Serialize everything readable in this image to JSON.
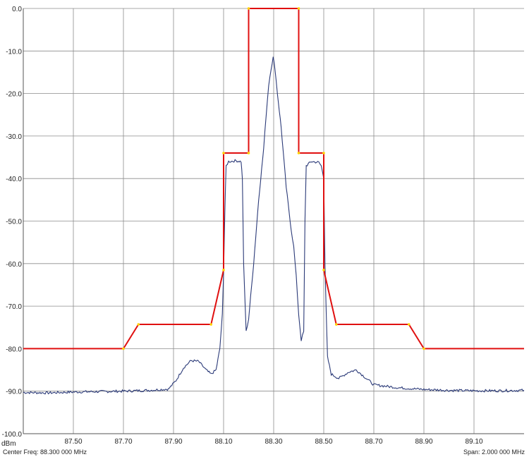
{
  "chart_data": {
    "type": "line",
    "title": "",
    "xlabel": "",
    "ylabel": "dBm",
    "xlim": [
      87.3,
      89.3
    ],
    "ylim": [
      -100,
      0
    ],
    "grid": true,
    "x_ticks": [
      "87.50",
      "87.70",
      "87.90",
      "88.10",
      "88.30",
      "88.50",
      "88.70",
      "88.90",
      "89.10"
    ],
    "y_ticks": [
      "0.0",
      "-10.0",
      "-20.0",
      "-30.0",
      "-40.0",
      "-50.0",
      "-60.0",
      "-70.0",
      "-80.0",
      "-90.0",
      "-100.0"
    ],
    "center_freq_label": "Center Freq: 88.300 000 MHz",
    "span_label": "Span: 2.000 000 MHz",
    "mask": {
      "color": "#e01010",
      "vertex_color": "#ffd400",
      "points": [
        [
          87.3,
          -80
        ],
        [
          87.7,
          -80
        ],
        [
          87.76,
          -74.3
        ],
        [
          88.05,
          -74.3
        ],
        [
          88.1,
          -61.5
        ],
        [
          88.1,
          -34
        ],
        [
          88.2,
          -34
        ],
        [
          88.2,
          0
        ],
        [
          88.4,
          0
        ],
        [
          88.4,
          -34
        ],
        [
          88.5,
          -34
        ],
        [
          88.5,
          -61.5
        ],
        [
          88.55,
          -74.3
        ],
        [
          88.84,
          -74.3
        ],
        [
          88.9,
          -80
        ],
        [
          89.3,
          -80
        ]
      ]
    },
    "series": [
      {
        "color": "#2b3a78",
        "points": [
          [
            87.3,
            -90.3
          ],
          [
            87.4,
            -90.4
          ],
          [
            87.5,
            -90.2
          ],
          [
            87.6,
            -90.1
          ],
          [
            87.7,
            -90.0
          ],
          [
            87.8,
            -89.8
          ],
          [
            87.88,
            -89.5
          ],
          [
            87.91,
            -87.5
          ],
          [
            87.94,
            -84.5
          ],
          [
            87.97,
            -82.8
          ],
          [
            88.0,
            -83.0
          ],
          [
            88.03,
            -85.0
          ],
          [
            88.05,
            -86.0
          ],
          [
            88.07,
            -85.0
          ],
          [
            88.085,
            -80.0
          ],
          [
            88.095,
            -72.0
          ],
          [
            88.1,
            -62.0
          ],
          [
            88.105,
            -48.0
          ],
          [
            88.11,
            -37.0
          ],
          [
            88.12,
            -36.0
          ],
          [
            88.15,
            -35.8
          ],
          [
            88.17,
            -36.0
          ],
          [
            88.175,
            -40.0
          ],
          [
            88.18,
            -60.0
          ],
          [
            88.19,
            -76.0
          ],
          [
            88.2,
            -73.0
          ],
          [
            88.22,
            -60.0
          ],
          [
            88.24,
            -45.0
          ],
          [
            88.26,
            -33.0
          ],
          [
            88.27,
            -25.0
          ],
          [
            88.28,
            -18.0
          ],
          [
            88.29,
            -14.0
          ],
          [
            88.298,
            -11.5
          ],
          [
            88.305,
            -14.0
          ],
          [
            88.315,
            -20.0
          ],
          [
            88.33,
            -28.0
          ],
          [
            88.35,
            -42.0
          ],
          [
            88.37,
            -52.0
          ],
          [
            88.38,
            -56.0
          ],
          [
            88.39,
            -63.0
          ],
          [
            88.4,
            -72.0
          ],
          [
            88.41,
            -78.0
          ],
          [
            88.42,
            -76.0
          ],
          [
            88.425,
            -50.0
          ],
          [
            88.43,
            -37.0
          ],
          [
            88.45,
            -36.0
          ],
          [
            88.48,
            -36.2
          ],
          [
            88.49,
            -37.0
          ],
          [
            88.5,
            -40.0
          ],
          [
            88.505,
            -60.0
          ],
          [
            88.51,
            -72.0
          ],
          [
            88.515,
            -82.0
          ],
          [
            88.53,
            -86.0
          ],
          [
            88.56,
            -87.0
          ],
          [
            88.6,
            -85.5
          ],
          [
            88.63,
            -85.0
          ],
          [
            88.66,
            -86.5
          ],
          [
            88.7,
            -88.5
          ],
          [
            88.8,
            -89.2
          ],
          [
            88.9,
            -89.6
          ],
          [
            89.0,
            -89.8
          ],
          [
            89.1,
            -89.9
          ],
          [
            89.2,
            -89.9
          ],
          [
            89.3,
            -89.8
          ]
        ]
      }
    ]
  }
}
